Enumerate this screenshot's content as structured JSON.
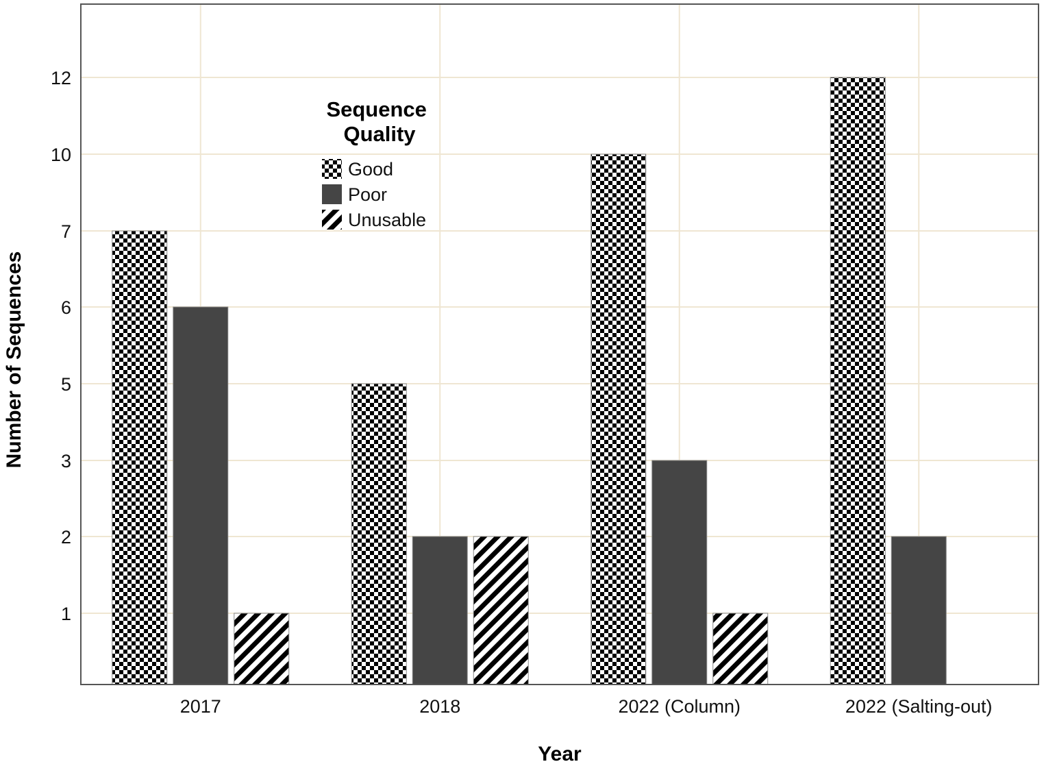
{
  "chart_data": {
    "type": "bar",
    "categories": [
      "2017",
      "2018",
      "2022 (Column)",
      "2022 (Salting-out)"
    ],
    "series": [
      {
        "name": "Good",
        "values": [
          7,
          5,
          10,
          12
        ],
        "pattern": "checker"
      },
      {
        "name": "Poor",
        "values": [
          6,
          2,
          3,
          2
        ],
        "pattern": "solid"
      },
      {
        "name": "Unusable",
        "values": [
          1,
          2,
          1,
          0
        ],
        "pattern": "hatch"
      }
    ],
    "xlabel": "Year",
    "ylabel": "Number of Sequences",
    "y_ticks": [
      1,
      2,
      3,
      5,
      6,
      7,
      10,
      12
    ],
    "ylim": [
      0,
      14
    ],
    "legend_title": "Sequence Quality",
    "legend_position": "top-left",
    "grid": true,
    "colors": {
      "grid": "#efe6d2",
      "poor_fill": "#454545",
      "pattern_dark": "#000000",
      "frame": "#555555"
    }
  }
}
